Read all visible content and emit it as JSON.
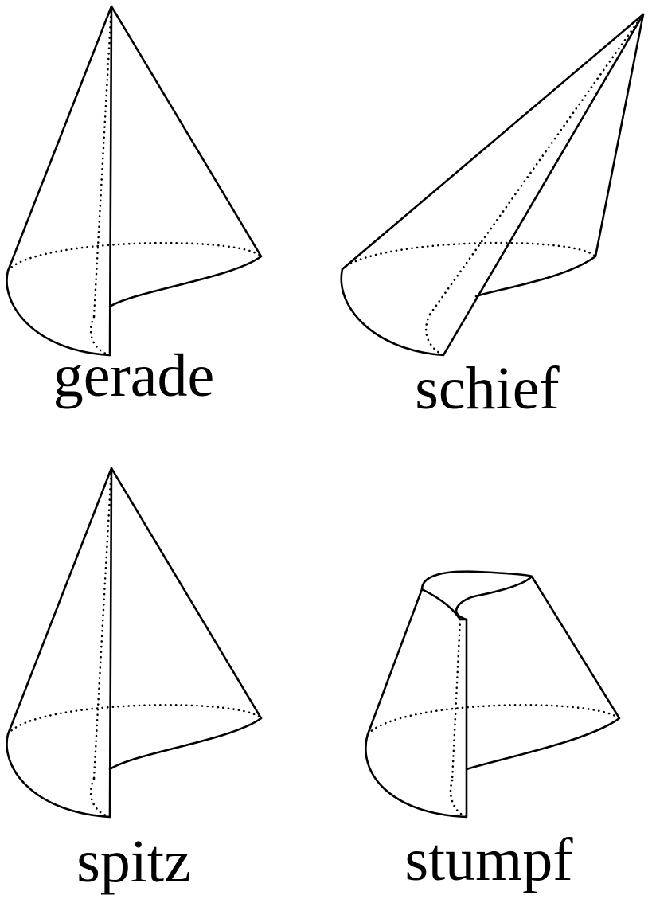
{
  "panels": {
    "top_left": {
      "label": "gerade"
    },
    "top_right": {
      "label": "schief"
    },
    "bottom_left": {
      "label": "spitz"
    },
    "bottom_right": {
      "label": "stumpf"
    }
  },
  "colors": {
    "line": "#000000",
    "background": "#ffffff"
  }
}
